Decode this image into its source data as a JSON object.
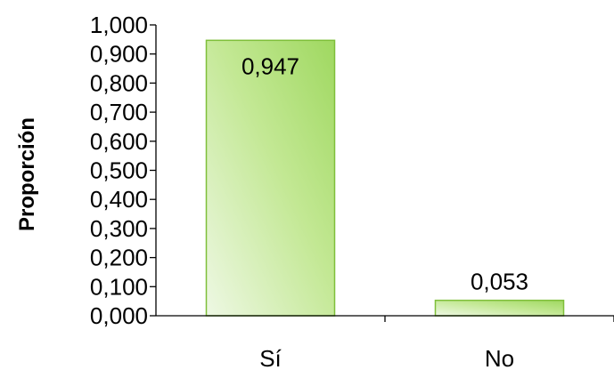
{
  "chart_data": {
    "type": "bar",
    "categories": [
      "Sí",
      "No"
    ],
    "values": [
      0.947,
      0.053
    ],
    "data_labels": [
      "0,947",
      "0,053"
    ],
    "ylabel": "Proporción",
    "xlabel": "",
    "ylim": [
      0,
      1
    ],
    "yticks": [
      0,
      0.1,
      0.2,
      0.3,
      0.4,
      0.5,
      0.6,
      0.7,
      0.8,
      0.9,
      1.0
    ],
    "ytick_labels": [
      "0,000",
      "0,100",
      "0,200",
      "0,300",
      "0,400",
      "0,500",
      "0,600",
      "0,700",
      "0,800",
      "0,900",
      "1,000"
    ],
    "grid": false,
    "legend": "none",
    "colors": {
      "bar_fill_light": "#eef8e4",
      "bar_fill_dark": "#9fd860",
      "bar_border": "#7fbf3a"
    }
  }
}
